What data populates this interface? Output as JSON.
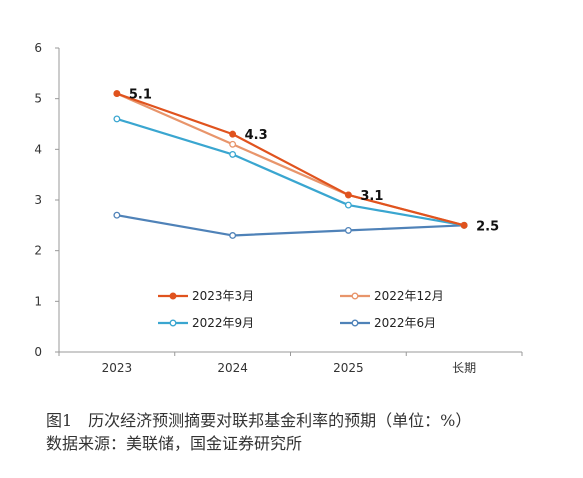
{
  "chart_data": {
    "type": "line",
    "categories": [
      "2023",
      "2024",
      "2025",
      "长期"
    ],
    "ylim": [
      0,
      6
    ],
    "yticks": [
      "0",
      "1",
      "2",
      "3",
      "4",
      "5",
      "6"
    ],
    "grid": false,
    "legend_position": "inside-bottom",
    "series": [
      {
        "name": "2023年3月",
        "values": [
          5.1,
          4.3,
          3.1,
          2.5
        ],
        "color": "#e0531e",
        "marker": "filled"
      },
      {
        "name": "2022年12月",
        "values": [
          5.1,
          4.1,
          3.1,
          2.5
        ],
        "color": "#e8956b",
        "marker": "hollow"
      },
      {
        "name": "2022年9月",
        "values": [
          4.6,
          3.9,
          2.9,
          2.5
        ],
        "color": "#3aa6d0",
        "marker": "hollow"
      },
      {
        "name": "2022年6月",
        "values": [
          2.7,
          2.3,
          2.4,
          2.5
        ],
        "color": "#4f82b8",
        "marker": "hollow"
      }
    ],
    "data_labels": [
      {
        "category_index": 0,
        "value": 5.1,
        "text": "5.1"
      },
      {
        "category_index": 1,
        "value": 4.3,
        "text": "4.3"
      },
      {
        "category_index": 2,
        "value": 3.1,
        "text": "3.1"
      },
      {
        "category_index": 3,
        "value": 2.5,
        "text": "2.5"
      }
    ]
  },
  "caption": {
    "title": "图1　历次经济预测摘要对联邦基金利率的预期（单位：%）",
    "source": "数据来源：美联储，国金证券研究所"
  }
}
